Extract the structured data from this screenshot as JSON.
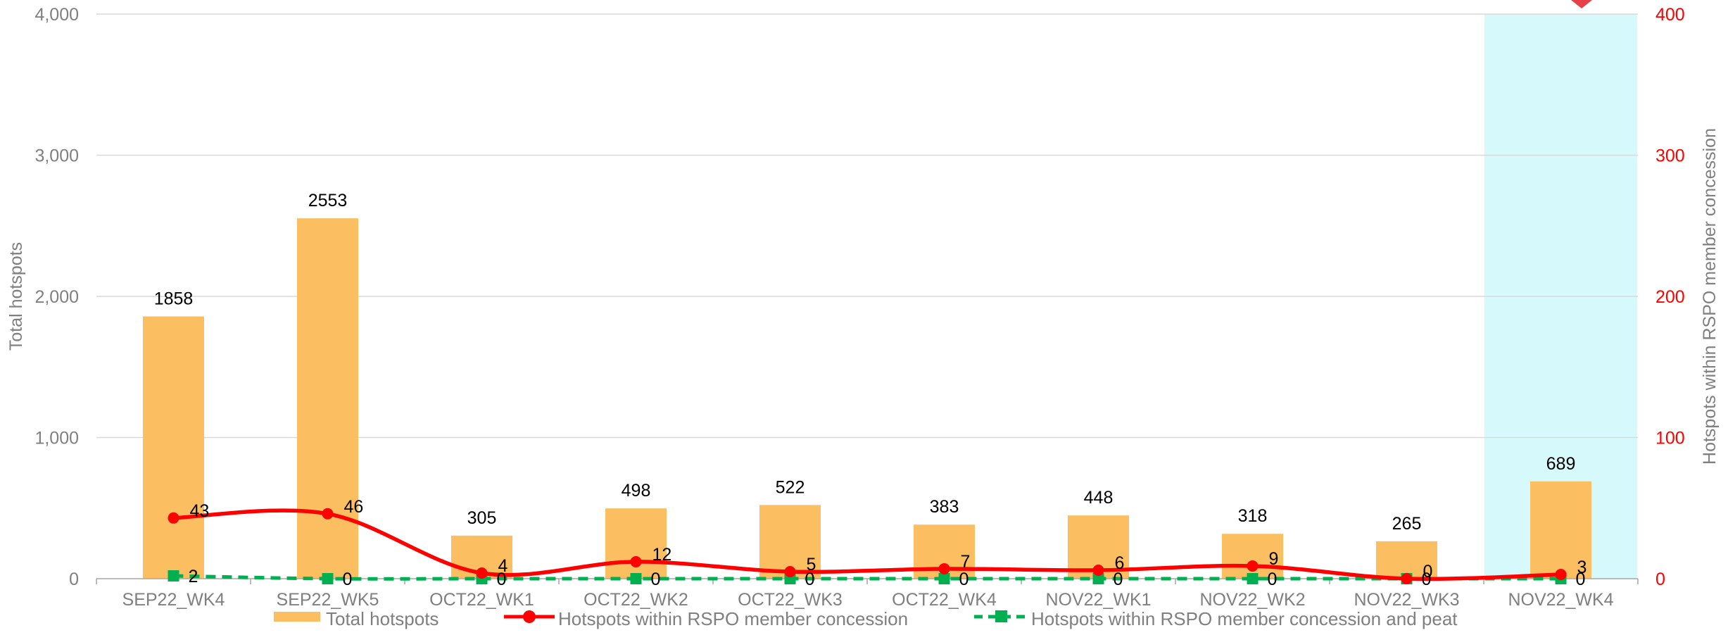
{
  "chart_data": {
    "type": "bar",
    "categories": [
      "SEP22_WK4",
      "SEP22_WK5",
      "OCT22_WK1",
      "OCT22_WK2",
      "OCT22_WK3",
      "OCT22_WK4",
      "NOV22_WK1",
      "NOV22_WK2",
      "NOV22_WK3",
      "NOV22_WK4"
    ],
    "ylabel": "Total hotspots",
    "y2label": "Hotspots within RSPO member concession",
    "ylim": [
      0,
      4000
    ],
    "y2lim": [
      0,
      400
    ],
    "yticks": [
      "0",
      "1,000",
      "2,000",
      "3,000",
      "4,000"
    ],
    "y2ticks": [
      "0",
      "100",
      "200",
      "300",
      "400"
    ],
    "grid": true,
    "legend_position": "bottom",
    "highlighted_category": "NOV22_WK4",
    "series": [
      {
        "name": "Total hotspots",
        "kind": "bar",
        "axis": "left",
        "color": "#fbbf62",
        "values": [
          1858,
          2553,
          305,
          498,
          522,
          383,
          448,
          318,
          265,
          689
        ]
      },
      {
        "name": "Hotspots within RSPO member concession",
        "kind": "line",
        "axis": "right",
        "color": "#ff0000",
        "values": [
          43,
          46,
          4,
          12,
          5,
          7,
          6,
          9,
          0,
          3
        ]
      },
      {
        "name": "Hotspots within RSPO member concession and peat",
        "kind": "line-dashed",
        "axis": "right",
        "color": "#00b050",
        "values": [
          2,
          0,
          0,
          0,
          0,
          0,
          0,
          0,
          0,
          0
        ]
      }
    ],
    "colors": {
      "highlight": "#d6fafb",
      "grid": "#d9d9d9",
      "axis": "#a6a6a6",
      "right_tick": "#ff0000"
    }
  }
}
